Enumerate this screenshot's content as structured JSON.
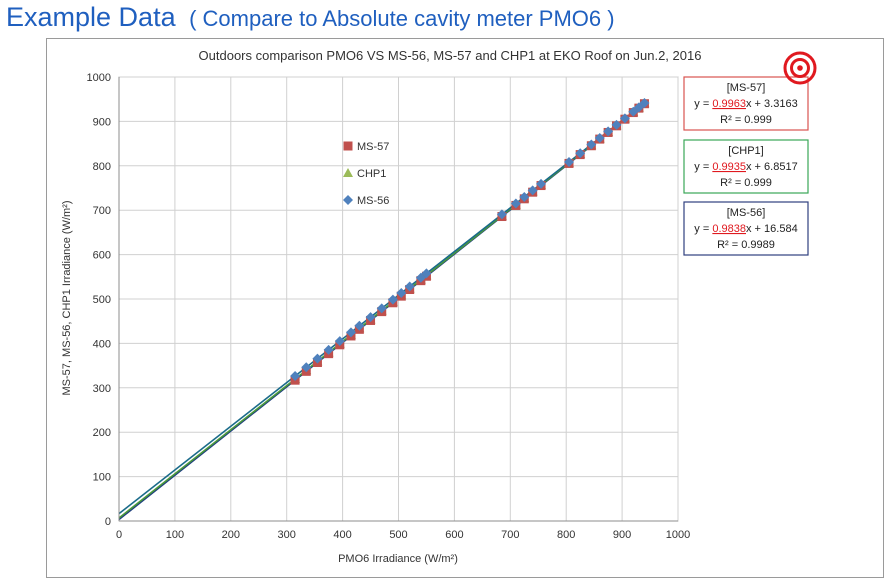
{
  "page": {
    "title": "Example Data",
    "subtitle": "( Compare to Absolute cavity meter PMO6 )"
  },
  "chart_data": {
    "type": "scatter",
    "title": "Outdoors comparison PMO6 VS MS-56, MS-57 and CHP1 at EKO Roof on Jun.2, 2016",
    "xlabel": "PMO6 Irradiance (W/m²)",
    "ylabel": "MS-57, MS-56, CHP1  Irradiance (W/m²)",
    "xlim": [
      0,
      1000
    ],
    "ylim": [
      0,
      1000
    ],
    "xticks": [
      "0",
      "100",
      "200",
      "300",
      "400",
      "500",
      "600",
      "700",
      "800",
      "900",
      "1000"
    ],
    "yticks": [
      "0",
      "100",
      "200",
      "300",
      "400",
      "500",
      "600",
      "700",
      "800",
      "900",
      "1000"
    ],
    "grid": true,
    "legend_position": "upper-center",
    "series": [
      {
        "name": "MS-57",
        "marker": "square",
        "color": "#c0504d",
        "x": [
          315,
          335,
          355,
          375,
          395,
          415,
          430,
          450,
          470,
          490,
          505,
          520,
          540,
          550,
          685,
          710,
          725,
          740,
          755,
          805,
          825,
          845,
          860,
          875,
          890,
          905,
          920,
          930,
          940
        ],
        "fit": {
          "slope": 0.9963,
          "intercept": 3.3163,
          "r2": 0.999
        },
        "line_color": "#1f3f7f"
      },
      {
        "name": "CHP1",
        "marker": "triangle",
        "color": "#9bbb59",
        "x": [
          315,
          335,
          355,
          375,
          395,
          415,
          430,
          450,
          470,
          490,
          505,
          520,
          540,
          550,
          685,
          710,
          725,
          740,
          755,
          805,
          825,
          845,
          860,
          875,
          890,
          905,
          920,
          930,
          940
        ],
        "fit": {
          "slope": 0.9935,
          "intercept": 6.8517,
          "r2": 0.999
        },
        "line_color": "#4a9a3a"
      },
      {
        "name": "MS-56",
        "marker": "diamond",
        "color": "#4f81bd",
        "x": [
          315,
          335,
          355,
          375,
          395,
          415,
          430,
          450,
          470,
          490,
          505,
          520,
          540,
          550,
          685,
          710,
          725,
          740,
          755,
          805,
          825,
          845,
          860,
          875,
          890,
          905,
          920,
          930,
          940
        ],
        "fit": {
          "slope": 0.9838,
          "intercept": 16.584,
          "r2": 0.9989
        },
        "line_color": "#1a6b8a"
      }
    ],
    "annotations": [
      {
        "name": "MS-57",
        "header": "[MS-57]",
        "eq_prefix": "y = ",
        "eq_slope": "0.9963",
        "eq_suffix": "x + 3.3163",
        "r2": "R² = 0.999",
        "border_color": "#d9534f"
      },
      {
        "name": "CHP1",
        "header": "[CHP1]",
        "eq_prefix": "y = ",
        "eq_slope": "0.9935",
        "eq_suffix": "x + 6.8517",
        "r2": "R² = 0.999",
        "border_color": "#3aa657"
      },
      {
        "name": "MS-56",
        "header": "[MS-56]",
        "eq_prefix": "y = ",
        "eq_slope": "0.9838",
        "eq_suffix": "x + 16.584",
        "r2": "R² = 0.9989",
        "border_color": "#2f3f7f"
      }
    ],
    "highlight_color": "#e0191f",
    "target_icon": "concentric-circle-target-icon"
  }
}
